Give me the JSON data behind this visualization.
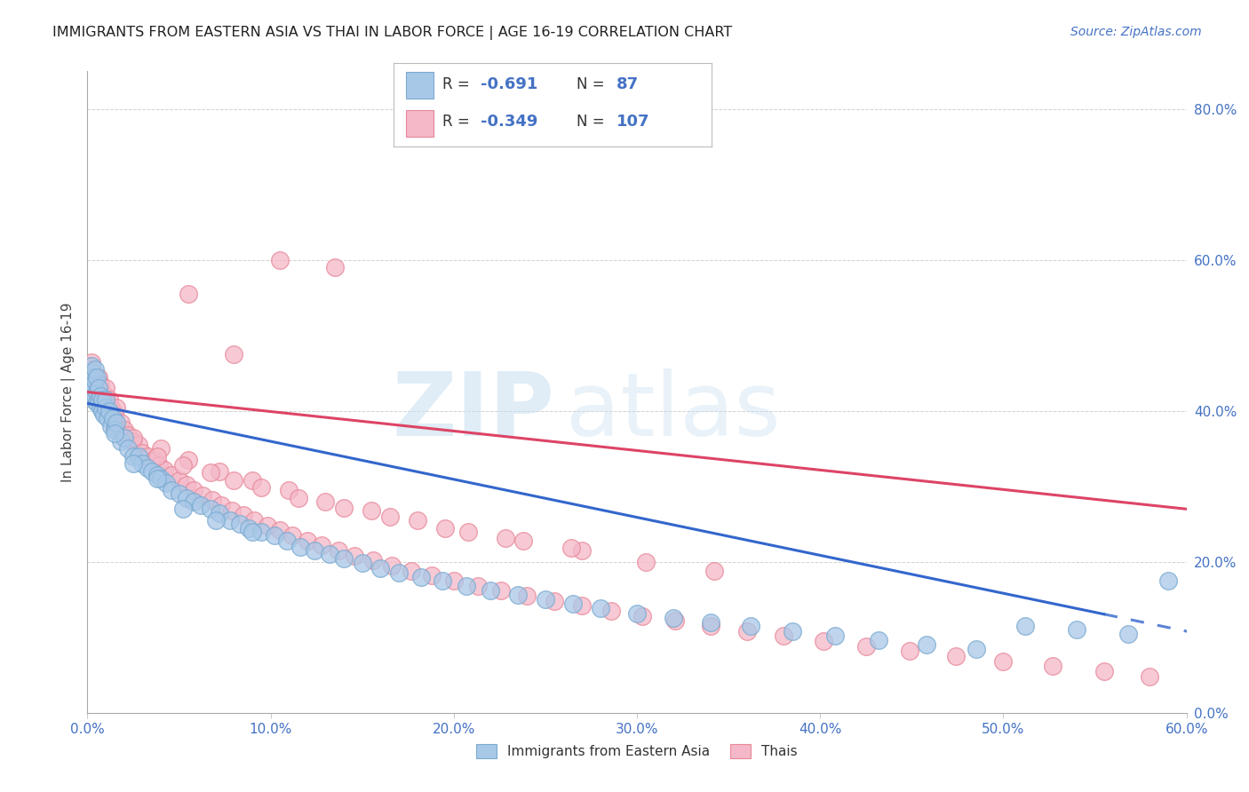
{
  "title": "IMMIGRANTS FROM EASTERN ASIA VS THAI IN LABOR FORCE | AGE 16-19 CORRELATION CHART",
  "source_text": "Source: ZipAtlas.com",
  "ylabel": "In Labor Force | Age 16-19",
  "xlim": [
    0.0,
    0.6
  ],
  "ylim": [
    0.0,
    0.85
  ],
  "xtick_vals": [
    0.0,
    0.1,
    0.2,
    0.3,
    0.4,
    0.5,
    0.6
  ],
  "ytick_vals": [
    0.0,
    0.2,
    0.4,
    0.6,
    0.8
  ],
  "blue_R": -0.691,
  "blue_N": 87,
  "pink_R": -0.349,
  "pink_N": 107,
  "blue_scatter_color": "#a8c8e8",
  "pink_scatter_color": "#f4b8c8",
  "blue_edge_color": "#7aaad0",
  "pink_edge_color": "#e88898",
  "blue_line_color": "#3366cc",
  "pink_line_color": "#dd4466",
  "legend_label_blue": "Immigrants from Eastern Asia",
  "legend_label_pink": "Thais",
  "blue_x": [
    0.001,
    0.001,
    0.002,
    0.002,
    0.002,
    0.003,
    0.003,
    0.003,
    0.004,
    0.004,
    0.004,
    0.005,
    0.005,
    0.005,
    0.006,
    0.006,
    0.007,
    0.007,
    0.008,
    0.008,
    0.009,
    0.01,
    0.01,
    0.011,
    0.012,
    0.013,
    0.014,
    0.015,
    0.016,
    0.018,
    0.02,
    0.022,
    0.025,
    0.028,
    0.03,
    0.033,
    0.035,
    0.038,
    0.04,
    0.043,
    0.046,
    0.05,
    0.054,
    0.058,
    0.062,
    0.067,
    0.072,
    0.078,
    0.083,
    0.088,
    0.095,
    0.102,
    0.109,
    0.116,
    0.124,
    0.132,
    0.14,
    0.15,
    0.16,
    0.17,
    0.182,
    0.194,
    0.207,
    0.22,
    0.235,
    0.25,
    0.265,
    0.28,
    0.3,
    0.32,
    0.34,
    0.362,
    0.385,
    0.408,
    0.432,
    0.458,
    0.485,
    0.512,
    0.54,
    0.568,
    0.59,
    0.015,
    0.025,
    0.038,
    0.052,
    0.07,
    0.09
  ],
  "blue_y": [
    0.42,
    0.44,
    0.43,
    0.45,
    0.46,
    0.415,
    0.435,
    0.445,
    0.42,
    0.44,
    0.455,
    0.41,
    0.425,
    0.445,
    0.415,
    0.43,
    0.405,
    0.42,
    0.4,
    0.415,
    0.395,
    0.405,
    0.415,
    0.39,
    0.4,
    0.38,
    0.39,
    0.375,
    0.385,
    0.36,
    0.365,
    0.35,
    0.34,
    0.34,
    0.33,
    0.325,
    0.32,
    0.315,
    0.31,
    0.305,
    0.295,
    0.29,
    0.285,
    0.28,
    0.275,
    0.27,
    0.265,
    0.255,
    0.25,
    0.245,
    0.24,
    0.235,
    0.228,
    0.22,
    0.215,
    0.21,
    0.205,
    0.198,
    0.192,
    0.186,
    0.18,
    0.175,
    0.168,
    0.162,
    0.156,
    0.15,
    0.145,
    0.138,
    0.132,
    0.126,
    0.12,
    0.115,
    0.108,
    0.102,
    0.096,
    0.09,
    0.084,
    0.115,
    0.11,
    0.105,
    0.175,
    0.37,
    0.33,
    0.31,
    0.27,
    0.255,
    0.24
  ],
  "pink_x": [
    0.001,
    0.001,
    0.002,
    0.002,
    0.002,
    0.003,
    0.003,
    0.004,
    0.004,
    0.005,
    0.005,
    0.006,
    0.006,
    0.007,
    0.007,
    0.008,
    0.008,
    0.009,
    0.01,
    0.01,
    0.011,
    0.012,
    0.013,
    0.014,
    0.015,
    0.016,
    0.018,
    0.02,
    0.022,
    0.025,
    0.028,
    0.03,
    0.033,
    0.036,
    0.039,
    0.042,
    0.046,
    0.05,
    0.054,
    0.058,
    0.063,
    0.068,
    0.073,
    0.079,
    0.085,
    0.091,
    0.098,
    0.105,
    0.112,
    0.12,
    0.128,
    0.137,
    0.146,
    0.156,
    0.166,
    0.177,
    0.188,
    0.2,
    0.213,
    0.226,
    0.24,
    0.255,
    0.27,
    0.286,
    0.303,
    0.321,
    0.34,
    0.36,
    0.38,
    0.402,
    0.425,
    0.449,
    0.474,
    0.5,
    0.527,
    0.555,
    0.58,
    0.015,
    0.025,
    0.04,
    0.055,
    0.072,
    0.09,
    0.11,
    0.13,
    0.155,
    0.18,
    0.208,
    0.238,
    0.27,
    0.305,
    0.342,
    0.038,
    0.052,
    0.067,
    0.08,
    0.095,
    0.115,
    0.14,
    0.165,
    0.195,
    0.228,
    0.264,
    0.055,
    0.08,
    0.105,
    0.135
  ],
  "pink_y": [
    0.445,
    0.46,
    0.44,
    0.455,
    0.465,
    0.43,
    0.45,
    0.435,
    0.445,
    0.425,
    0.44,
    0.43,
    0.445,
    0.42,
    0.435,
    0.415,
    0.425,
    0.41,
    0.42,
    0.43,
    0.408,
    0.415,
    0.405,
    0.4,
    0.395,
    0.405,
    0.385,
    0.375,
    0.368,
    0.36,
    0.355,
    0.345,
    0.34,
    0.335,
    0.328,
    0.322,
    0.315,
    0.308,
    0.302,
    0.295,
    0.288,
    0.282,
    0.275,
    0.268,
    0.262,
    0.255,
    0.248,
    0.242,
    0.235,
    0.228,
    0.222,
    0.215,
    0.208,
    0.202,
    0.195,
    0.188,
    0.182,
    0.175,
    0.168,
    0.162,
    0.155,
    0.148,
    0.142,
    0.135,
    0.128,
    0.122,
    0.115,
    0.108,
    0.102,
    0.095,
    0.088,
    0.082,
    0.075,
    0.068,
    0.062,
    0.055,
    0.048,
    0.38,
    0.365,
    0.35,
    0.335,
    0.32,
    0.308,
    0.295,
    0.28,
    0.268,
    0.255,
    0.24,
    0.228,
    0.215,
    0.2,
    0.188,
    0.34,
    0.328,
    0.318,
    0.308,
    0.298,
    0.285,
    0.272,
    0.26,
    0.245,
    0.232,
    0.218,
    0.555,
    0.475,
    0.6,
    0.59
  ]
}
